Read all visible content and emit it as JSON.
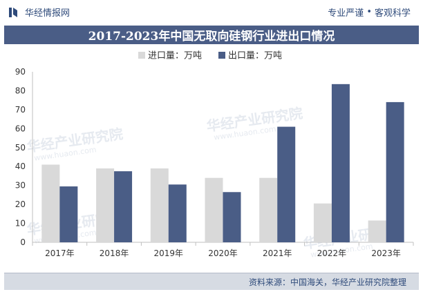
{
  "header": {
    "brand_name": "华经情报网",
    "slogan_left": "专业严谨",
    "slogan_sep": "•",
    "slogan_right": "客观科学"
  },
  "chart_data": {
    "type": "bar",
    "title": "2017-2023年中国无取向硅钢行业进出口情况",
    "categories": [
      "2017年",
      "2018年",
      "2019年",
      "2020年",
      "2021年",
      "2022年",
      "2023年"
    ],
    "series": [
      {
        "name": "进口量：万吨",
        "color": "#d9d9d9",
        "values": [
          41,
          39,
          39,
          34,
          34,
          20.5,
          11.5
        ]
      },
      {
        "name": "出口量：万吨",
        "color": "#4a5d86",
        "values": [
          29.5,
          37.5,
          30.5,
          26.5,
          61,
          83.5,
          74
        ]
      }
    ],
    "ylim": [
      0,
      90
    ],
    "yticks": [
      0,
      10,
      20,
      30,
      40,
      50,
      60,
      70,
      80,
      90
    ],
    "legend_position": "top-center",
    "grid": false
  },
  "watermark": {
    "text": "华经产业研究院",
    "url": "www.huaon.com"
  },
  "footer": {
    "source": "资料来源：中国海关，华经产业研究院整理"
  }
}
